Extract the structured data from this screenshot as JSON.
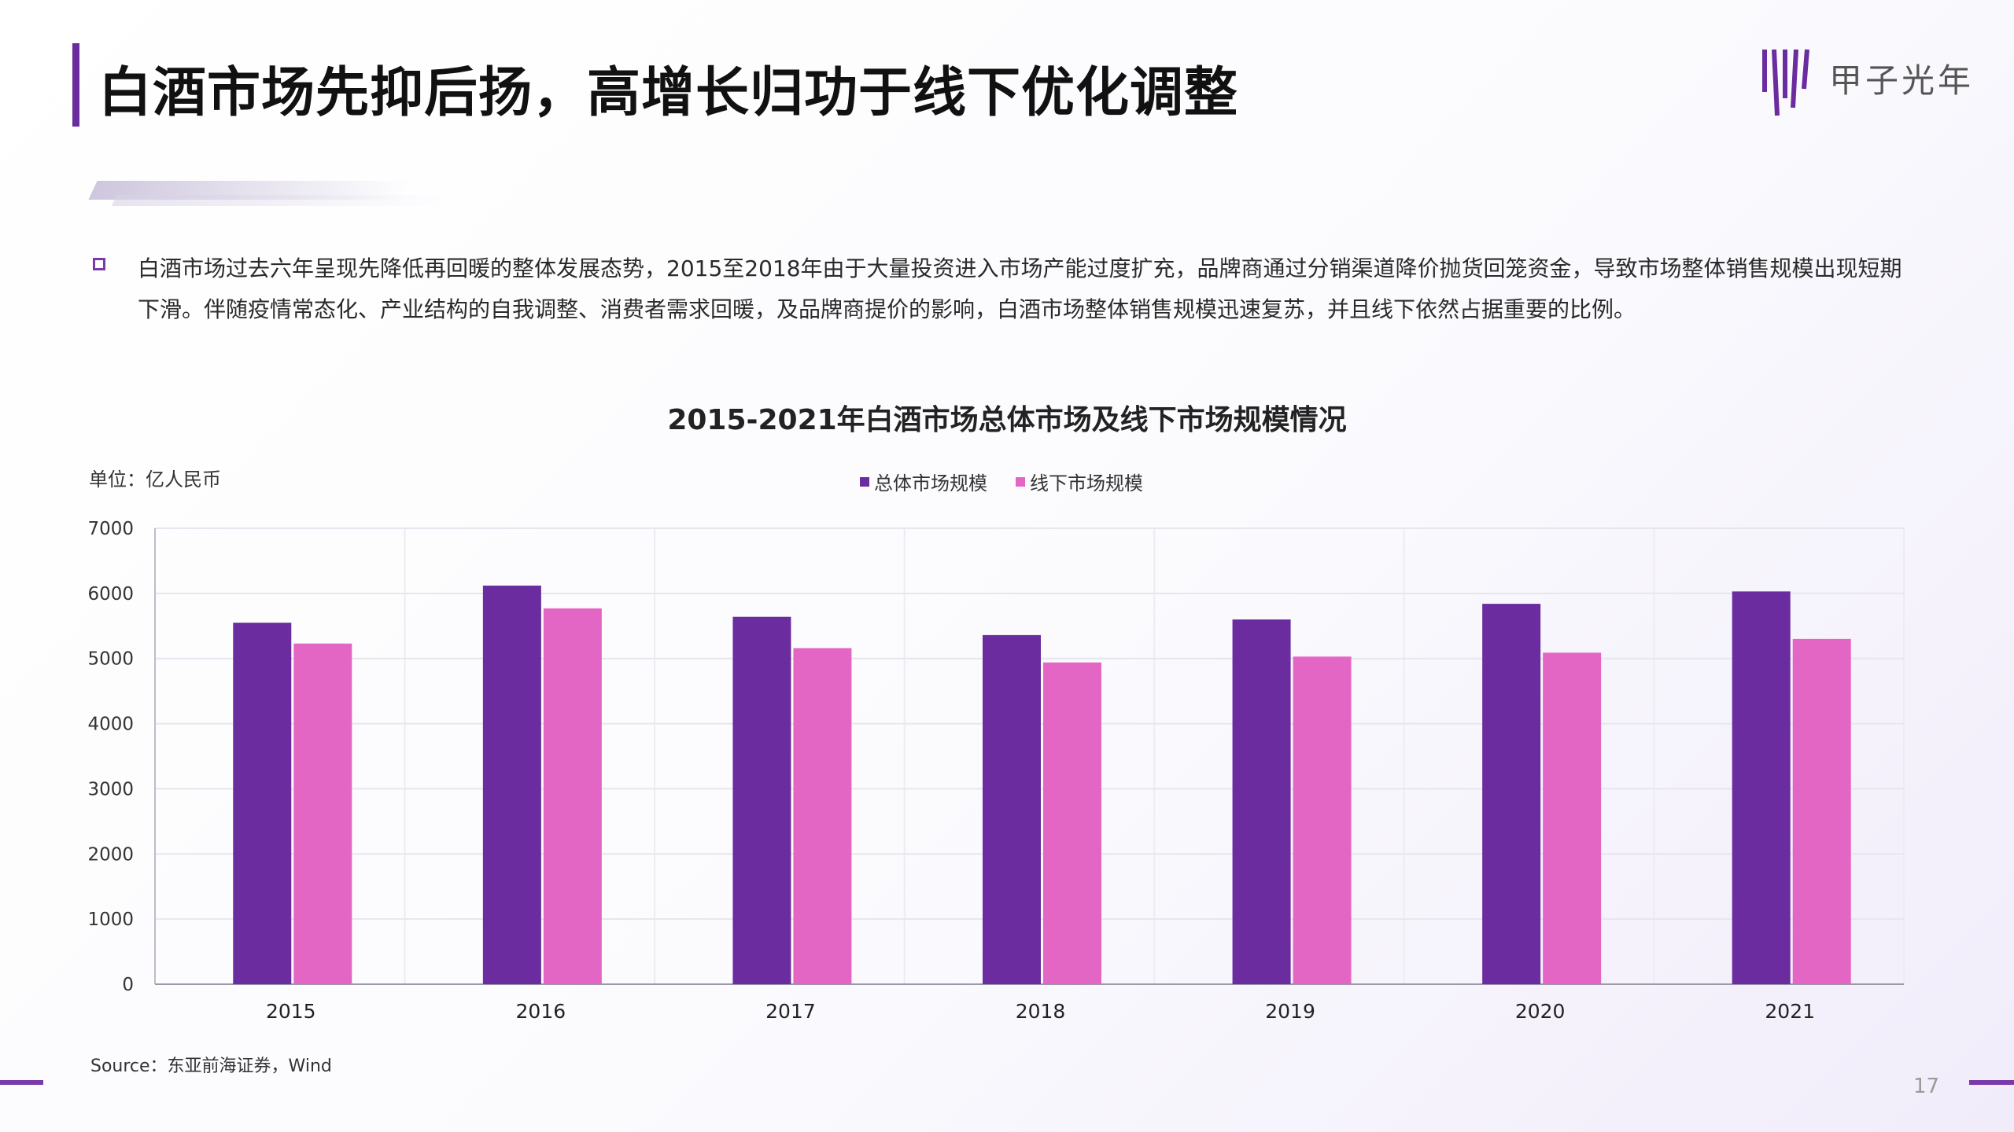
{
  "slide": {
    "title": "白酒市场先抑后扬，高增长归功于线下优化调整",
    "logo_text": "甲子光年",
    "body": "白酒市场过去六年呈现先降低再回暖的整体发展态势，2015至2018年由于大量投资进入市场产能过度扩充，品牌商通过分销渠道降价抛货回笼资金，导致市场整体销售规模出现短期下滑。伴随疫情常态化、产业结构的自我调整、消费者需求回暖，及品牌商提价的影响，白酒市场整体销售规模迅速复苏，并且线下依然占据重要的比例。",
    "source": "Source：东亚前海证券，Wind",
    "page_number": "17",
    "accent_color": "#6a2c9e"
  },
  "chart_data": {
    "type": "bar",
    "title": "2015-2021年白酒市场总体市场及线下市场规模情况",
    "unit_label": "单位：亿人民币",
    "categories": [
      "2015",
      "2016",
      "2017",
      "2018",
      "2019",
      "2020",
      "2021"
    ],
    "series": [
      {
        "name": "总体市场规模",
        "color": "#6a2c9e",
        "values": [
          5550,
          6120,
          5640,
          5360,
          5600,
          5840,
          6030
        ]
      },
      {
        "name": "线下市场规模",
        "color": "#e466c4",
        "values": [
          5230,
          5770,
          5160,
          4940,
          5030,
          5090,
          5300
        ]
      }
    ],
    "ylim": [
      0,
      7000
    ],
    "yticks": [
      "0",
      "1000",
      "2000",
      "3000",
      "4000",
      "5000",
      "6000",
      "7000"
    ],
    "grid": true,
    "legend": "top-center"
  }
}
